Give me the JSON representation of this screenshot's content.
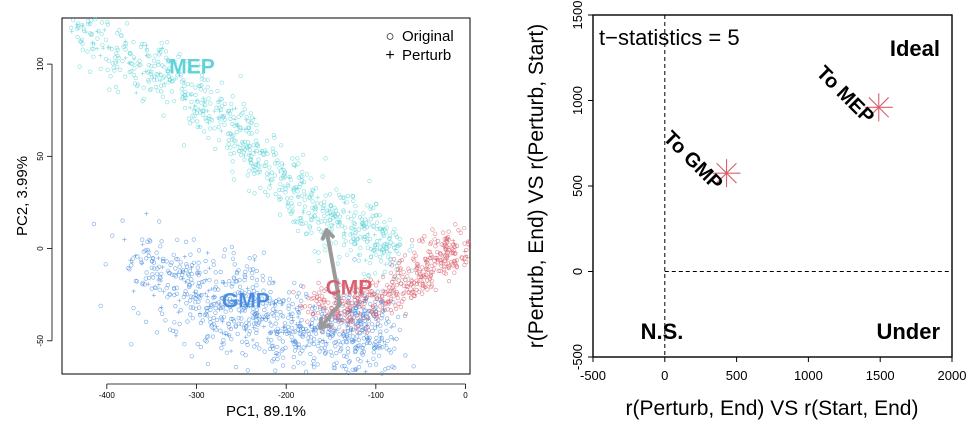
{
  "chart_data": [
    {
      "type": "scatter",
      "xlabel": "PC1, 89.1%",
      "ylabel": "PC2, 3.99%",
      "xlim": [
        -450,
        5
      ],
      "ylim": [
        -68,
        125
      ],
      "xticks": [
        -400,
        -300,
        -200,
        -100,
        0
      ],
      "yticks": [
        -50,
        0,
        50,
        100
      ],
      "grid": false,
      "legend": {
        "placement": "top-right",
        "entries": [
          {
            "symbol": "○",
            "label": "Original"
          },
          {
            "symbol": "+",
            "label": "Perturb"
          }
        ]
      },
      "clusters": [
        {
          "name": "MEP",
          "color": "#5fd3d8",
          "ridge": [
            [
              -440,
              122
            ],
            [
              -380,
              105
            ],
            [
              -330,
              92
            ],
            [
              -280,
              75
            ],
            [
              -240,
              55
            ],
            [
              -200,
              35
            ],
            [
              -160,
              18
            ],
            [
              -120,
              10
            ],
            [
              -75,
              -2
            ]
          ],
          "spread": [
            10,
            9
          ],
          "count": 700,
          "perturb_count": 120
        },
        {
          "name": "GMP",
          "color": "#4a8fdf",
          "ridge": [
            [
              -360,
              -5
            ],
            [
              -300,
              -25
            ],
            [
              -250,
              -35
            ],
            [
              -200,
              -42
            ],
            [
              -150,
              -47
            ],
            [
              -110,
              -48
            ],
            [
              -120,
              -35
            ]
          ],
          "spread": [
            22,
            12
          ],
          "count": 780,
          "perturb_count": 160
        },
        {
          "name": "CMP",
          "color": "#d9606d",
          "ridge": [
            [
              -170,
              -30
            ],
            [
              -130,
              -35
            ],
            [
              -90,
              -25
            ],
            [
              -55,
              -15
            ],
            [
              -25,
              -3
            ],
            [
              -3,
              0
            ]
          ],
          "spread": [
            12,
            6
          ],
          "count": 420,
          "perturb_count": 40
        }
      ],
      "labels": [
        {
          "text": "MEP",
          "x": -305,
          "y": 95,
          "color": "#5fd3d8"
        },
        {
          "text": "GMP",
          "x": -245,
          "y": -32,
          "color": "#4a8fdf"
        },
        {
          "text": "CMP",
          "x": -130,
          "y": -25,
          "color": "#d9606d"
        }
      ],
      "arrows": [
        {
          "from": [
            -140,
            -30
          ],
          "to": [
            -155,
            10
          ]
        },
        {
          "from": [
            -140,
            -30
          ],
          "to": [
            -162,
            -43
          ]
        }
      ],
      "arrow_color": "#9a9a9a"
    },
    {
      "type": "scatter",
      "xlabel": "r(Perturb, End) VS r(Start, End)",
      "ylabel": "r(Perturb, End) VS r(Perturb, Start)",
      "xlim": [
        -500,
        2000
      ],
      "ylim": [
        -500,
        1500
      ],
      "xticks": [
        -500,
        0,
        500,
        1000,
        1500,
        2000
      ],
      "yticks": [
        -500,
        0,
        500,
        1000,
        1500
      ],
      "grid": false,
      "annotation": "t−statistics = 5",
      "points": [
        {
          "label": "To GMP",
          "x": 430,
          "y": 575
        },
        {
          "label": "To MEP",
          "x": 1490,
          "y": 960
        }
      ],
      "point_color": "#d9606d",
      "quadrant_labels": {
        "ideal": "Ideal",
        "ns": "N.S.",
        "under": "Under"
      },
      "reference_lines": {
        "x": 0,
        "y": 0
      }
    }
  ]
}
